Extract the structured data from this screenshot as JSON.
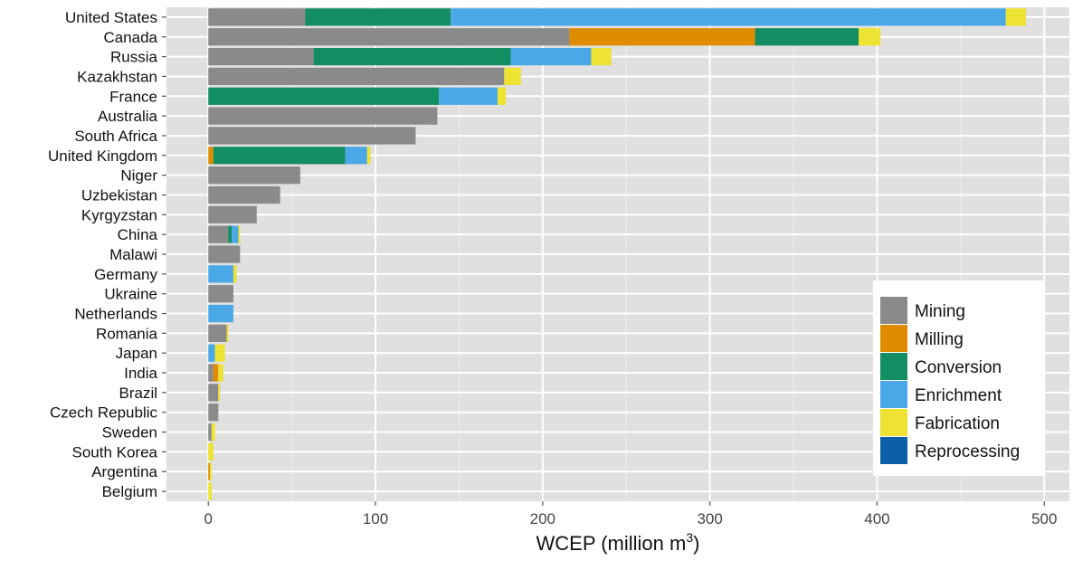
{
  "chart_data": {
    "type": "bar",
    "orientation": "horizontal",
    "stacked": true,
    "categories": [
      "United States",
      "Canada",
      "Russia",
      "Kazakhstan",
      "France",
      "Australia",
      "South Africa",
      "United Kingdom",
      "Niger",
      "Uzbekistan",
      "Kyrgyzstan",
      "China",
      "Malawi",
      "Germany",
      "Ukraine",
      "Netherlands",
      "Romania",
      "Japan",
      "India",
      "Brazil",
      "Czech Republic",
      "Sweden",
      "South Korea",
      "Argentina",
      "Belgium"
    ],
    "series": [
      {
        "name": "Mining",
        "color": "#8a8a8a",
        "values": [
          58,
          216,
          63,
          177,
          0,
          137,
          124,
          0,
          55,
          43,
          29,
          12,
          19,
          0,
          15,
          0,
          11,
          0,
          3,
          6,
          6,
          2,
          0,
          0,
          0
        ]
      },
      {
        "name": "Milling",
        "color": "#e08c00",
        "values": [
          0,
          111,
          0,
          0,
          0,
          0,
          0,
          3,
          0,
          0,
          0,
          0,
          0,
          0,
          0,
          0,
          0,
          0,
          3,
          0,
          0,
          0,
          0,
          1,
          0
        ]
      },
      {
        "name": "Conversion",
        "color": "#138d62",
        "values": [
          87,
          62,
          118,
          0,
          138,
          0,
          0,
          79,
          0,
          0,
          0,
          2,
          0,
          0,
          0,
          0,
          0,
          0,
          0,
          0,
          0,
          0,
          0,
          0,
          0
        ]
      },
      {
        "name": "Enrichment",
        "color": "#4aa8e6",
        "values": [
          332,
          0,
          48,
          0,
          35,
          0,
          0,
          13,
          0,
          0,
          0,
          4,
          0,
          15,
          0,
          15,
          0,
          4,
          0,
          0,
          0,
          0,
          0,
          0,
          0
        ]
      },
      {
        "name": "Fabrication",
        "color": "#eee232",
        "values": [
          12,
          13,
          12,
          10,
          5,
          0,
          0,
          2,
          0,
          0,
          0,
          1,
          0,
          2,
          0,
          0,
          1,
          6,
          3,
          1,
          0,
          2,
          3,
          1,
          2
        ]
      },
      {
        "name": "Reprocessing",
        "color": "#0d5fa8",
        "values": [
          0,
          0,
          0,
          0,
          0,
          0,
          0,
          0,
          0,
          0,
          0,
          0,
          0,
          0,
          0,
          0,
          0,
          0,
          0,
          0,
          0,
          0,
          0,
          0,
          0
        ]
      }
    ],
    "xlabel": "WCEP (million m",
    "xlabel_sup": "3",
    "xlabel_close": ")",
    "xlim": [
      -25,
      515
    ],
    "xticks": [
      0,
      100,
      200,
      300,
      400,
      500
    ],
    "grid": true,
    "legend_position": "bottom-right"
  }
}
